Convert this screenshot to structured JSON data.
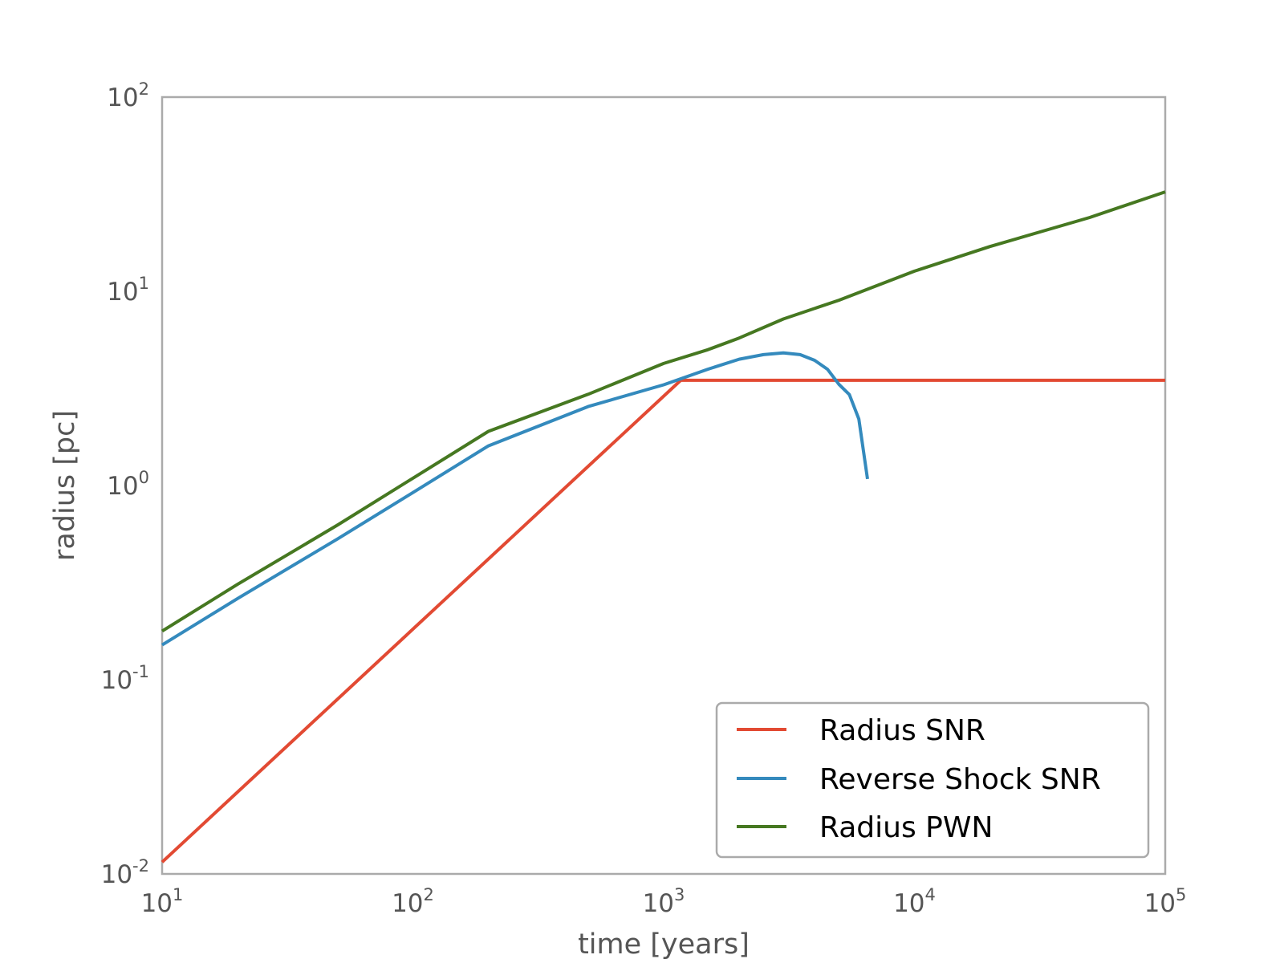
{
  "chart_data": {
    "type": "line",
    "title": "",
    "xlabel": "time [years]",
    "ylabel": "radius [pc]",
    "xscale": "log",
    "yscale": "log",
    "xlim": [
      10,
      100000
    ],
    "ylim": [
      0.01,
      100
    ],
    "grid": false,
    "legend_position": "lower-right",
    "x_ticks": [
      {
        "value": 10,
        "base": "10",
        "exp": "1"
      },
      {
        "value": 100,
        "base": "10",
        "exp": "2"
      },
      {
        "value": 1000,
        "base": "10",
        "exp": "3"
      },
      {
        "value": 10000,
        "base": "10",
        "exp": "4"
      },
      {
        "value": 100000,
        "base": "10",
        "exp": "5"
      }
    ],
    "y_ticks": [
      {
        "value": 0.01,
        "base": "10",
        "exp": "-2"
      },
      {
        "value": 0.1,
        "base": "10",
        "exp": "-1"
      },
      {
        "value": 1,
        "base": "10",
        "exp": "0"
      },
      {
        "value": 10,
        "base": "10",
        "exp": "1"
      },
      {
        "value": 100,
        "base": "10",
        "exp": "2"
      }
    ],
    "series": [
      {
        "name": "Radius SNR",
        "color": "#e24a33",
        "points": [
          [
            10,
            0.0115
          ],
          [
            1170,
            3.48
          ],
          [
            1300,
            3.48
          ],
          [
            100000,
            3.48
          ]
        ]
      },
      {
        "name": "Reverse Shock SNR",
        "color": "#348abd",
        "points": [
          [
            10,
            0.151
          ],
          [
            20,
            0.262
          ],
          [
            50,
            0.53
          ],
          [
            100,
            0.92
          ],
          [
            200,
            1.6
          ],
          [
            500,
            2.55
          ],
          [
            1000,
            3.3
          ],
          [
            1500,
            3.97
          ],
          [
            2000,
            4.47
          ],
          [
            2500,
            4.72
          ],
          [
            3000,
            4.82
          ],
          [
            3500,
            4.72
          ],
          [
            4000,
            4.41
          ],
          [
            4500,
            3.97
          ],
          [
            5000,
            3.32
          ],
          [
            5500,
            2.94
          ],
          [
            6000,
            2.2
          ],
          [
            6500,
            1.08
          ]
        ]
      },
      {
        "name": "Radius PWN",
        "color": "#467821",
        "points": [
          [
            10,
            0.178
          ],
          [
            20,
            0.31
          ],
          [
            50,
            0.625
          ],
          [
            100,
            1.09
          ],
          [
            200,
            1.9
          ],
          [
            500,
            2.95
          ],
          [
            1000,
            4.25
          ],
          [
            1500,
            5.0
          ],
          [
            2000,
            5.75
          ],
          [
            3000,
            7.2
          ],
          [
            5000,
            9.0
          ],
          [
            10000,
            12.7
          ],
          [
            20000,
            17.0
          ],
          [
            50000,
            24.0
          ],
          [
            100000,
            32.5
          ]
        ]
      }
    ]
  }
}
